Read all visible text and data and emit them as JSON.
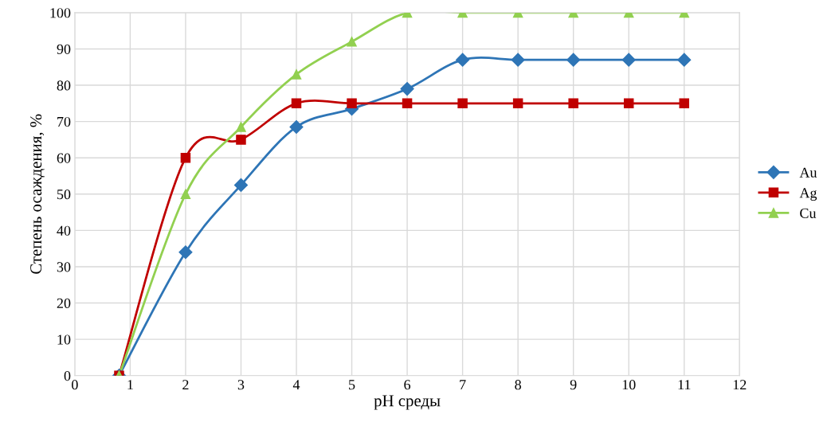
{
  "chart_data": {
    "type": "line",
    "xlabel": "pH среды",
    "ylabel": "Степень осаждения, %",
    "x": [
      0.8,
      2,
      3,
      4,
      5,
      6,
      7,
      8,
      9,
      10,
      11
    ],
    "series": [
      {
        "name": "Au",
        "color": "#2e75b6",
        "marker": "diamond",
        "values": [
          0,
          34,
          52.5,
          68.5,
          73.5,
          79,
          87,
          87,
          87,
          87,
          87
        ]
      },
      {
        "name": "Ag",
        "color": "#c00000",
        "marker": "square",
        "values": [
          0,
          60,
          65,
          75,
          75,
          75,
          75,
          75,
          75,
          75,
          75
        ]
      },
      {
        "name": "Cu",
        "color": "#92d050",
        "marker": "triangle",
        "values": [
          0,
          50,
          68.5,
          83,
          92,
          100,
          100,
          100,
          100,
          100,
          100
        ]
      }
    ],
    "xlim": [
      0,
      12
    ],
    "xticks": [
      0,
      1,
      2,
      3,
      4,
      5,
      6,
      7,
      8,
      9,
      10,
      11,
      12
    ],
    "ylim": [
      0,
      100
    ],
    "yticks": [
      0,
      10,
      20,
      30,
      40,
      50,
      60,
      70,
      80,
      90,
      100
    ],
    "grid": true,
    "legend": "right",
    "line_style": "solid"
  }
}
